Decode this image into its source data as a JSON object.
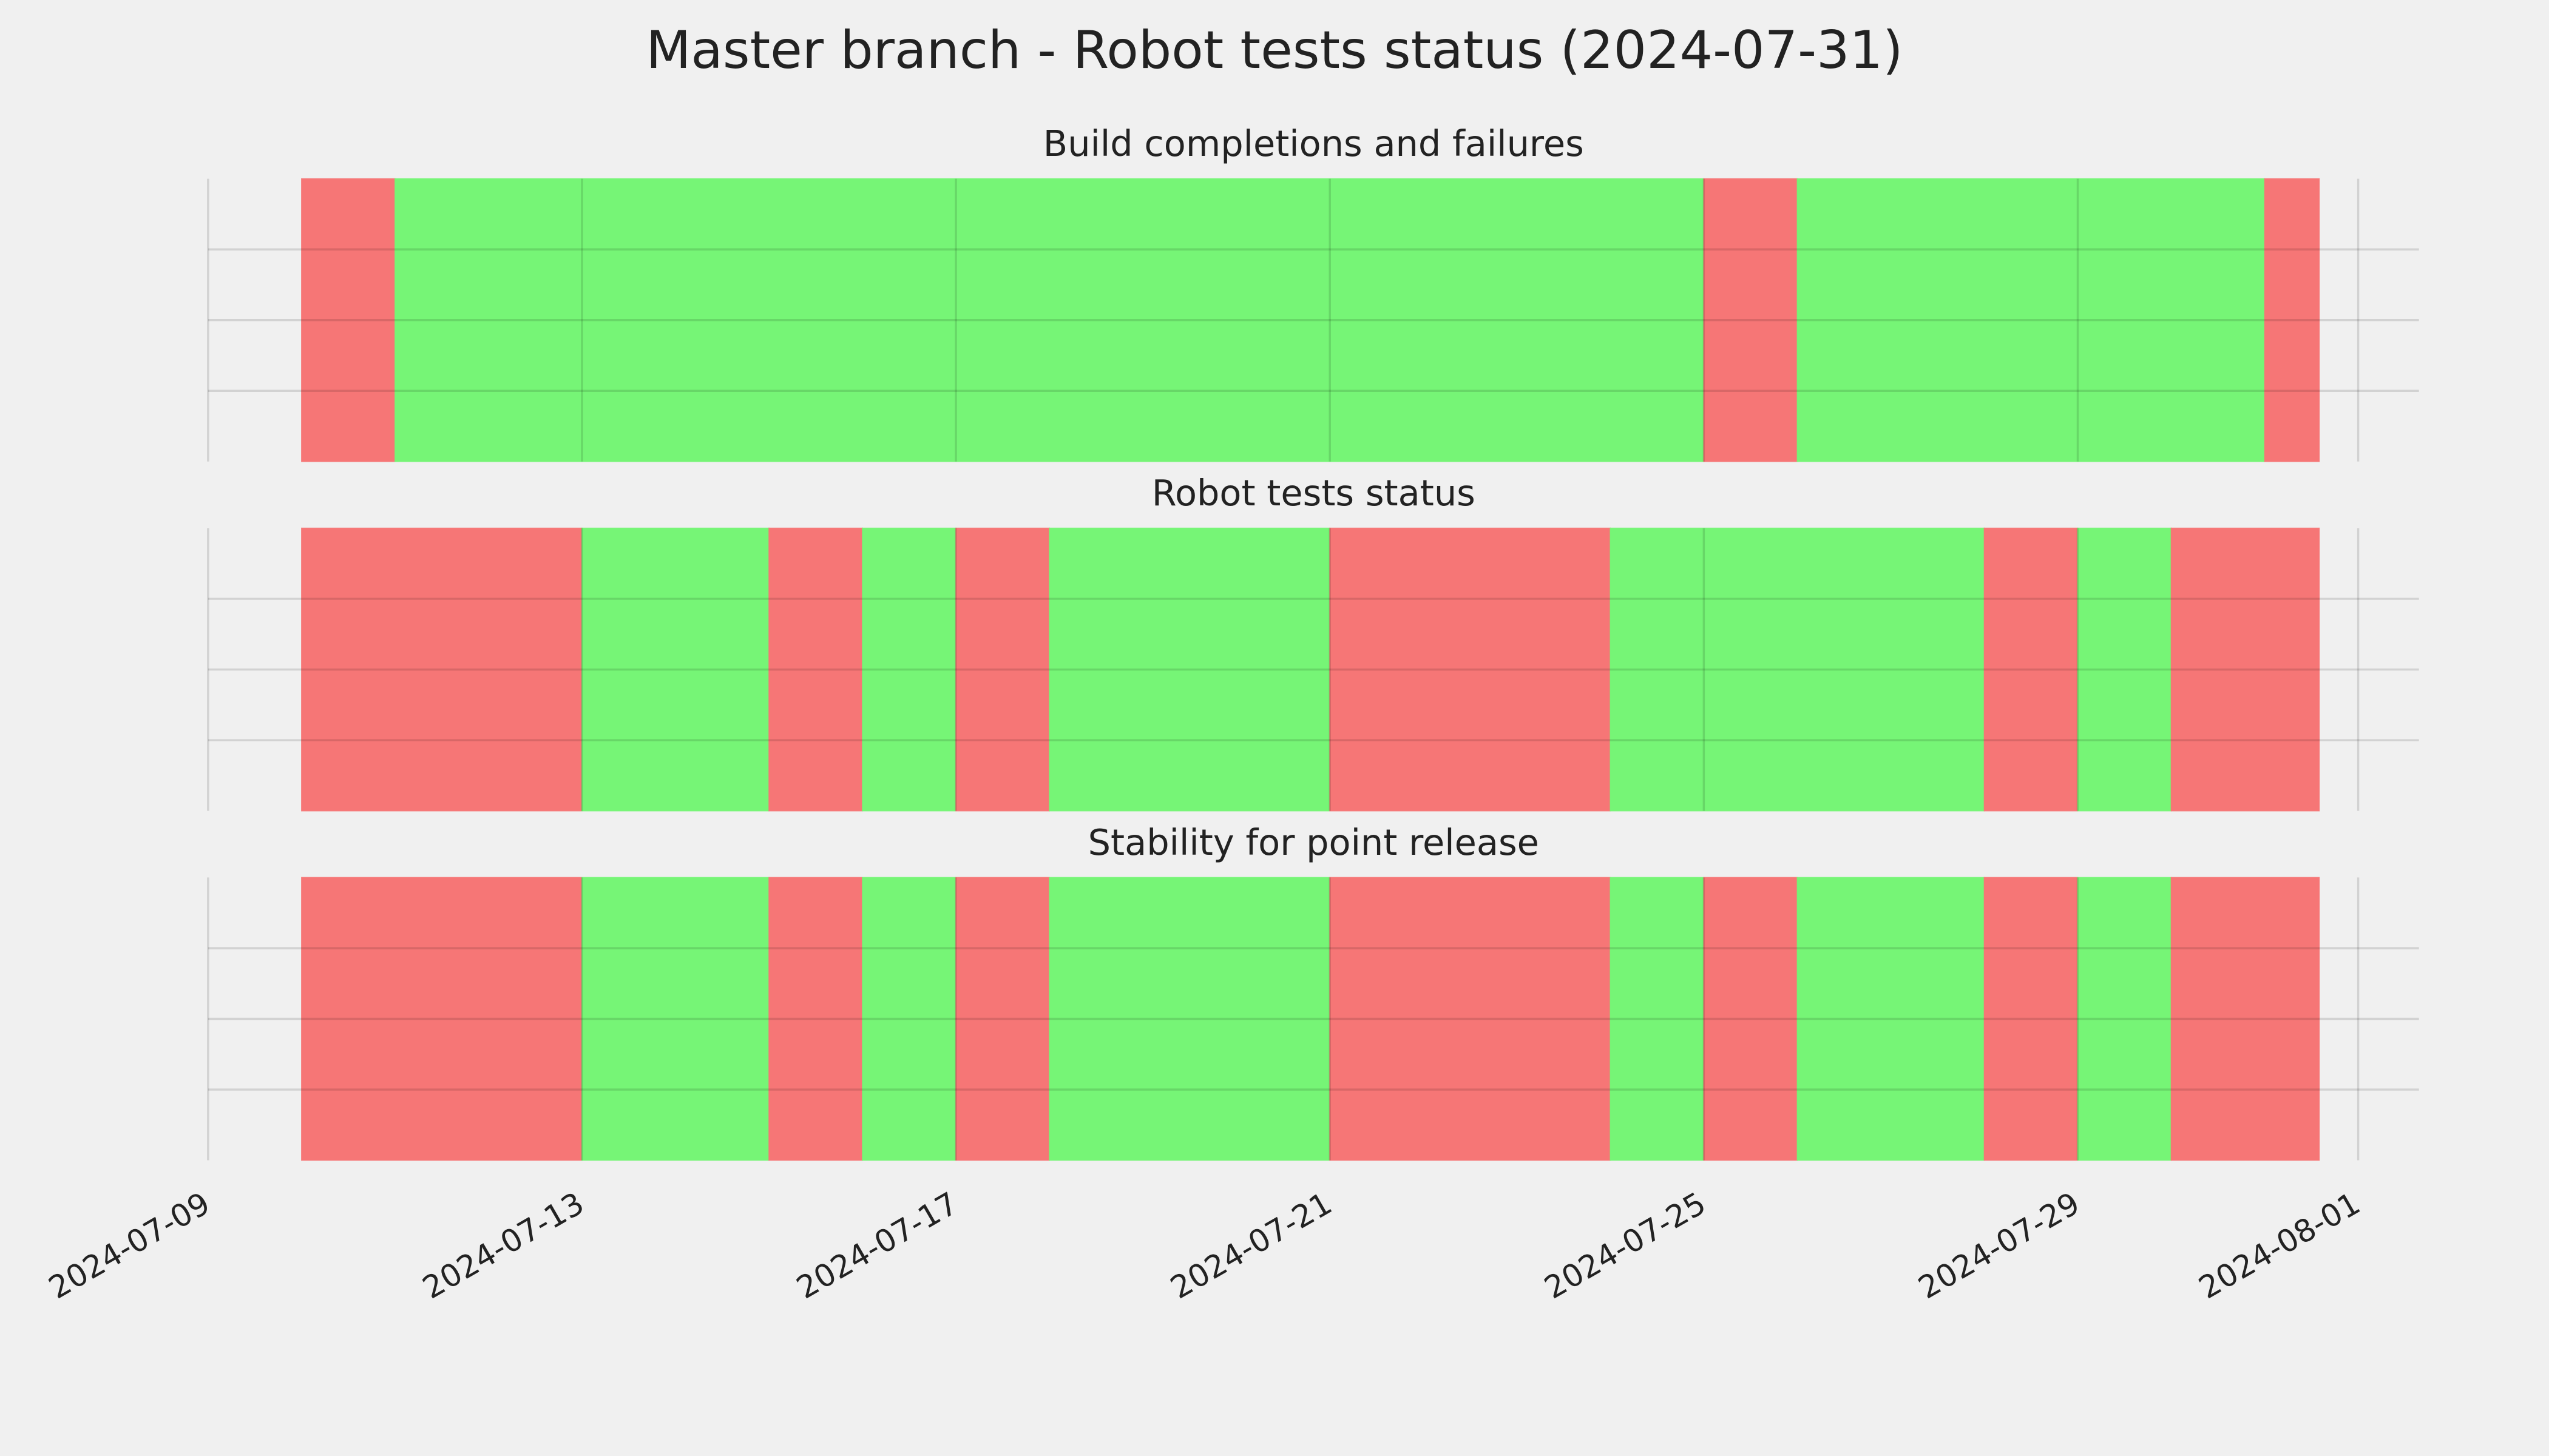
{
  "chart_data": {
    "type": "timeline",
    "title": "Master branch - Robot tests status (2024-07-31)",
    "xlim": [
      "2024-07-09",
      "2024-08-01T15:36"
    ],
    "xticks": [
      "2024-07-09",
      "2024-07-13",
      "2024-07-17",
      "2024-07-21",
      "2024-07-25",
      "2024-07-29",
      "2024-08-01"
    ],
    "ylim": [
      0,
      1
    ],
    "yticks": [
      0.25,
      0.5,
      0.75
    ],
    "grid": true,
    "panels": [
      {
        "title": "Build completions and failures",
        "segments": [
          {
            "start": "2024-07-10",
            "end": "2024-07-11",
            "color": "#f67676"
          },
          {
            "start": "2024-07-11",
            "end": "2024-07-25",
            "color": "#76f576"
          },
          {
            "start": "2024-07-25",
            "end": "2024-07-26",
            "color": "#f67676"
          },
          {
            "start": "2024-07-26",
            "end": "2024-07-31",
            "color": "#76f576"
          },
          {
            "start": "2024-07-31",
            "end": "2024-07-31T14:00",
            "color": "#f67676"
          }
        ]
      },
      {
        "title": "Robot tests status",
        "segments": [
          {
            "start": "2024-07-10",
            "end": "2024-07-13",
            "color": "#f67676"
          },
          {
            "start": "2024-07-13",
            "end": "2024-07-15",
            "color": "#76f576"
          },
          {
            "start": "2024-07-15",
            "end": "2024-07-16",
            "color": "#f67676"
          },
          {
            "start": "2024-07-16",
            "end": "2024-07-17",
            "color": "#76f576"
          },
          {
            "start": "2024-07-17",
            "end": "2024-07-18",
            "color": "#f67676"
          },
          {
            "start": "2024-07-18",
            "end": "2024-07-21",
            "color": "#76f576"
          },
          {
            "start": "2024-07-21",
            "end": "2024-07-24",
            "color": "#f67676"
          },
          {
            "start": "2024-07-24",
            "end": "2024-07-28",
            "color": "#76f576"
          },
          {
            "start": "2024-07-28",
            "end": "2024-07-29",
            "color": "#f67676"
          },
          {
            "start": "2024-07-29",
            "end": "2024-07-30",
            "color": "#76f576"
          },
          {
            "start": "2024-07-30",
            "end": "2024-07-31T14:00",
            "color": "#f67676"
          }
        ]
      },
      {
        "title": "Stability for point release",
        "segments": [
          {
            "start": "2024-07-10",
            "end": "2024-07-13",
            "color": "#f67676"
          },
          {
            "start": "2024-07-13",
            "end": "2024-07-15",
            "color": "#76f576"
          },
          {
            "start": "2024-07-15",
            "end": "2024-07-16",
            "color": "#f67676"
          },
          {
            "start": "2024-07-16",
            "end": "2024-07-17",
            "color": "#76f576"
          },
          {
            "start": "2024-07-17",
            "end": "2024-07-18",
            "color": "#f67676"
          },
          {
            "start": "2024-07-18",
            "end": "2024-07-21",
            "color": "#76f576"
          },
          {
            "start": "2024-07-21",
            "end": "2024-07-24",
            "color": "#f67676"
          },
          {
            "start": "2024-07-24",
            "end": "2024-07-25",
            "color": "#76f576"
          },
          {
            "start": "2024-07-25",
            "end": "2024-07-26",
            "color": "#f67676"
          },
          {
            "start": "2024-07-26",
            "end": "2024-07-28",
            "color": "#76f576"
          },
          {
            "start": "2024-07-28",
            "end": "2024-07-29",
            "color": "#f67676"
          },
          {
            "start": "2024-07-29",
            "end": "2024-07-30",
            "color": "#76f576"
          },
          {
            "start": "2024-07-30",
            "end": "2024-07-31T14:00",
            "color": "#f67676"
          }
        ]
      }
    ]
  }
}
